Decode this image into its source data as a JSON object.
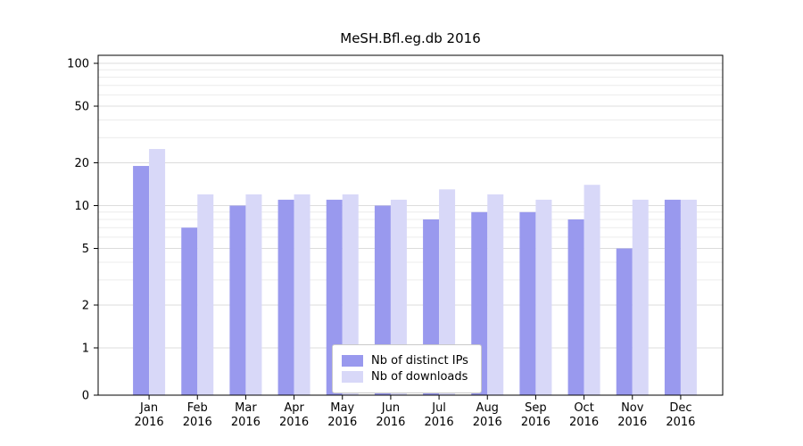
{
  "chart_data": {
    "type": "bar",
    "title": "MeSH.Bfl.eg.db 2016",
    "categories": [
      "Jan",
      "Feb",
      "Mar",
      "Apr",
      "May",
      "Jun",
      "Jul",
      "Aug",
      "Sep",
      "Oct",
      "Nov",
      "Dec"
    ],
    "year_label": "2016",
    "series": [
      {
        "name": "Nb of distinct IPs",
        "color": "#9999ee",
        "values": [
          19,
          7,
          10,
          11,
          11,
          10,
          8,
          9,
          9,
          8,
          5,
          11
        ]
      },
      {
        "name": "Nb of downloads",
        "color": "#d8d8f8",
        "values": [
          25,
          12,
          12,
          12,
          12,
          11,
          13,
          12,
          11,
          14,
          11,
          11
        ]
      }
    ],
    "yticks": [
      0,
      1,
      2,
      5,
      10,
      20,
      50,
      100
    ],
    "minor_yticks": [
      3,
      4,
      6,
      7,
      8,
      9,
      30,
      40,
      60,
      70,
      80,
      90
    ],
    "yscale": "log",
    "ylim": [
      0,
      100
    ],
    "grid": true,
    "legend_position": "lower center",
    "colors": {
      "axis": "#000000",
      "major_grid": "#dcdcdc",
      "minor_grid": "#ececec",
      "text": "#000000"
    }
  }
}
